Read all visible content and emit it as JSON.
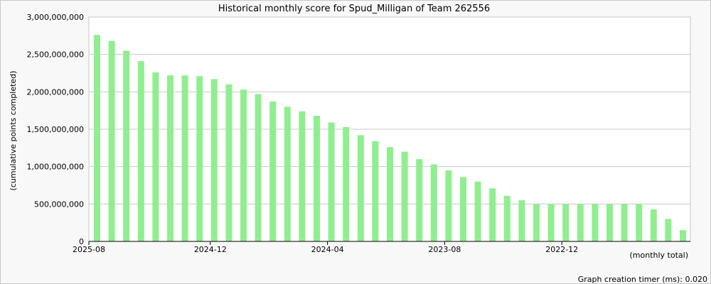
{
  "chart_data": {
    "type": "bar",
    "title": "Historical monthly score for Spud_Milligan of Team 262556",
    "ylabel": "(cumulative points completed)",
    "xlabel": "(monthly total)",
    "ylim": [
      0,
      3000000000
    ],
    "yticks": [
      0,
      500000000,
      1000000000,
      1500000000,
      2000000000,
      2500000000,
      3000000000
    ],
    "ytick_labels": [
      "0",
      "500,000,000",
      "1,000,000,000",
      "1,500,000,000",
      "2,000,000,000",
      "2,500,000,000",
      "3,000,000,000"
    ],
    "x_tick_labels": [
      {
        "label": "2025-08",
        "index": 0
      },
      {
        "label": "2024-12",
        "index": 8
      },
      {
        "label": "2024-04",
        "index": 16
      },
      {
        "label": "2023-08",
        "index": 24
      },
      {
        "label": "2022-12",
        "index": 32
      }
    ],
    "values": [
      2760000000,
      2680000000,
      2550000000,
      2410000000,
      2260000000,
      2220000000,
      2220000000,
      2210000000,
      2170000000,
      2100000000,
      2030000000,
      1970000000,
      1870000000,
      1800000000,
      1740000000,
      1680000000,
      1590000000,
      1530000000,
      1420000000,
      1340000000,
      1260000000,
      1200000000,
      1100000000,
      1030000000,
      950000000,
      860000000,
      800000000,
      710000000,
      610000000,
      550000000,
      500000000,
      500000000,
      500000000,
      500000000,
      500000000,
      500000000,
      500000000,
      500000000,
      430000000,
      300000000,
      150000000
    ],
    "bar_color": "#90ee90",
    "grid": true
  },
  "footer": {
    "timer_text": "Graph creation timer (ms): 0.020"
  }
}
